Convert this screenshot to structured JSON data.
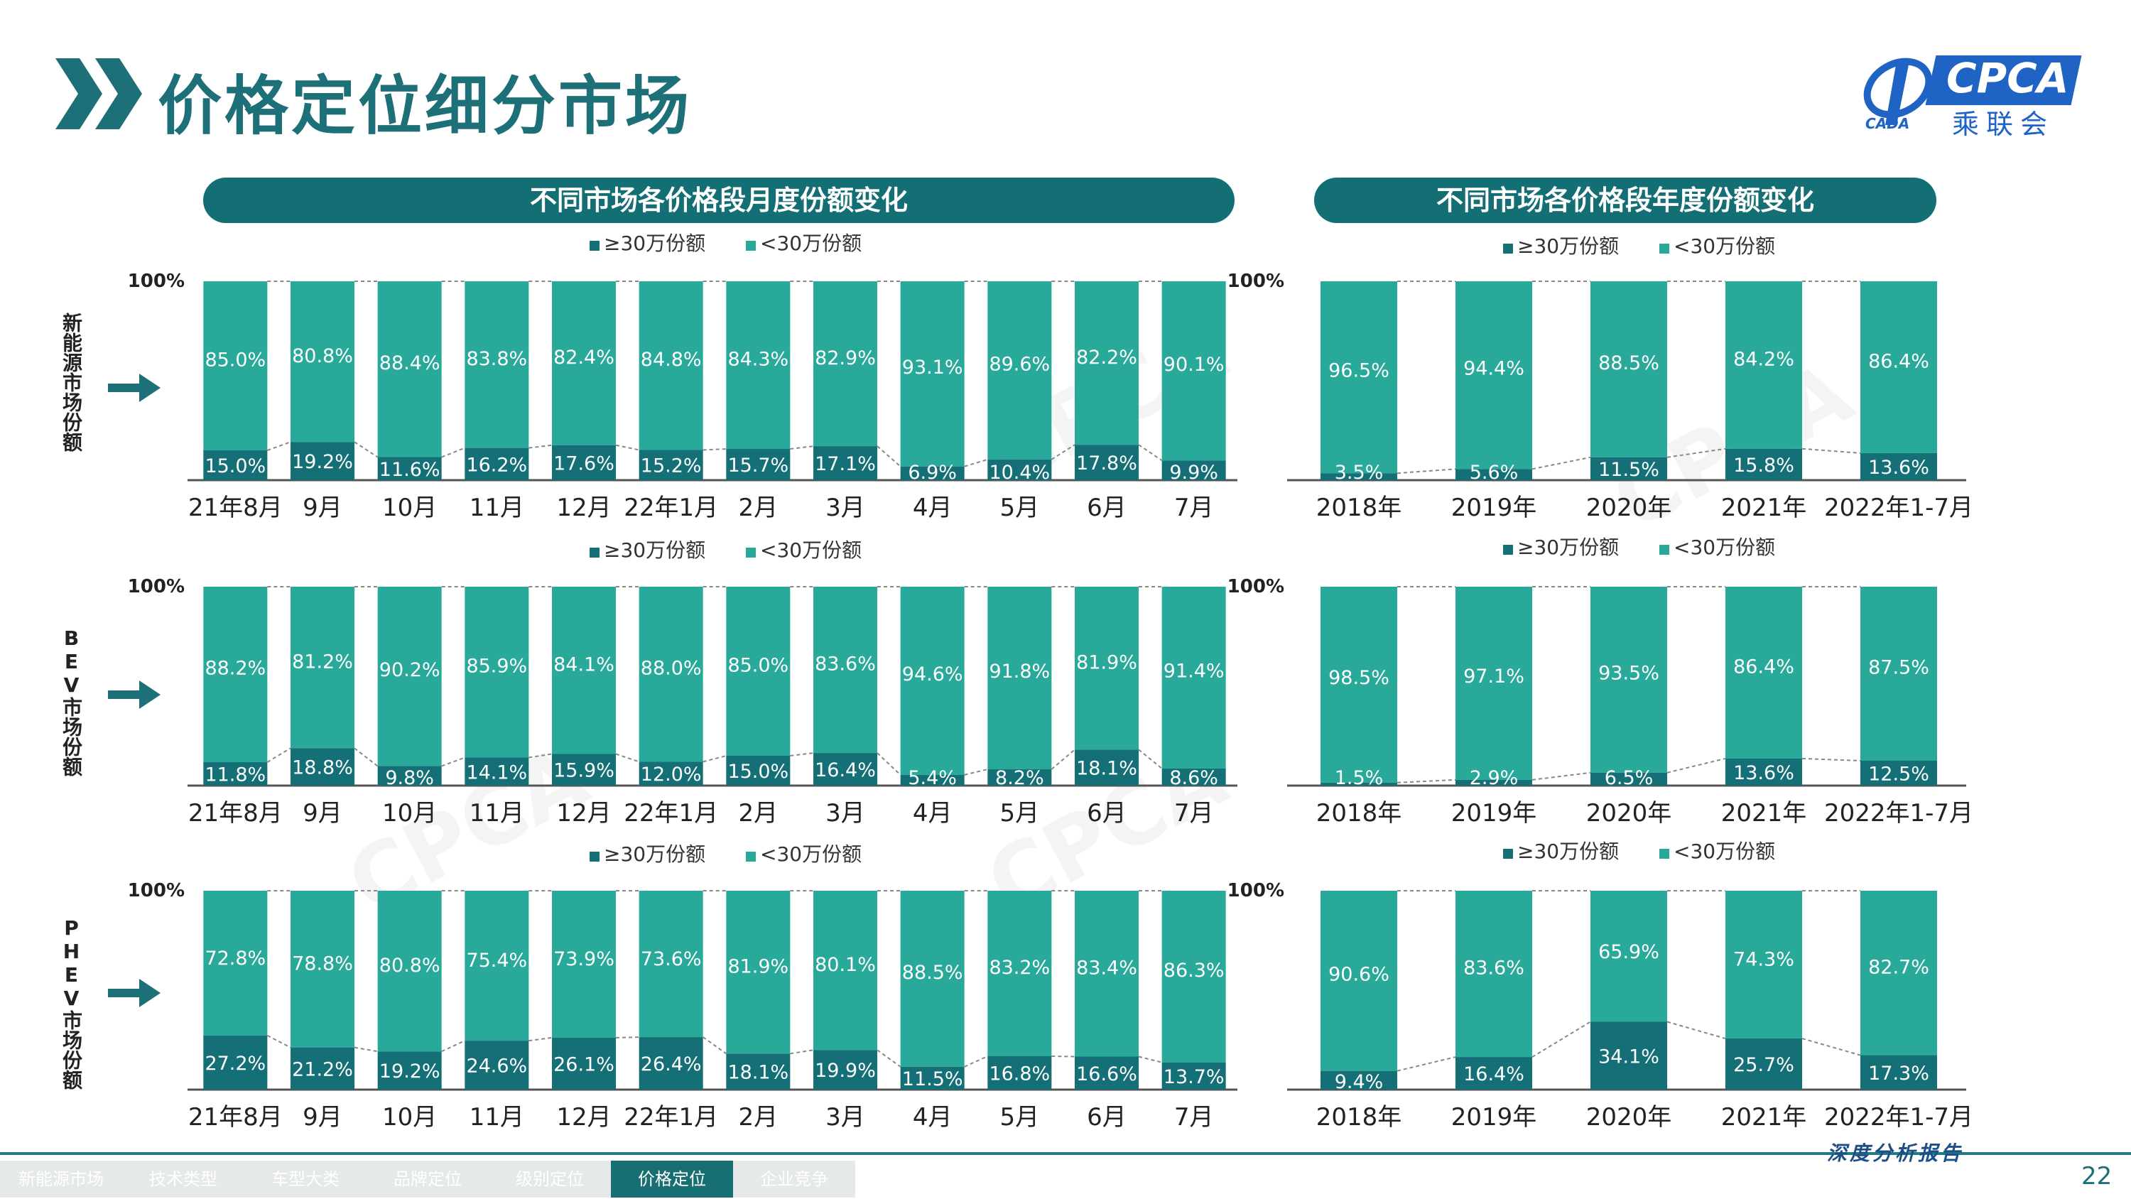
{
  "page": {
    "title": "价格定位细分市场",
    "page_number": "22",
    "report_label": "深度分析报告"
  },
  "logo": {
    "text": "CPCA",
    "sub": "乘联会",
    "small": "CADA"
  },
  "sections": {
    "monthly_header": "不同市场各价格段月度份额变化",
    "yearly_header": "不同市场各价格段年度份额变化"
  },
  "rows": [
    {
      "label": "新能源市场份额"
    },
    {
      "label": "BEV市场份额"
    },
    {
      "label": "PHEV市场份额"
    }
  ],
  "nav": [
    {
      "label": "新能源市场",
      "active": false
    },
    {
      "label": "技术类型",
      "active": false
    },
    {
      "label": "车型大类",
      "active": false
    },
    {
      "label": "品牌定位",
      "active": false
    },
    {
      "label": "级别定位",
      "active": false
    },
    {
      "label": "价格定位",
      "active": true
    },
    {
      "label": "企业竞争",
      "active": false
    }
  ],
  "colors": {
    "high": "#146f76",
    "low": "#28a99a",
    "header": "#136f74",
    "title": "#1d6f78"
  },
  "chart_data": [
    {
      "type": "bar",
      "stacked": true,
      "percent": true,
      "market": "新能源市场份额",
      "axis_top": "100%",
      "categories": [
        "21年8月",
        "9月",
        "10月",
        "11月",
        "12月",
        "22年1月",
        "2月",
        "3月",
        "4月",
        "5月",
        "6月",
        "7月"
      ],
      "series": [
        {
          "name": "≥30万份额",
          "values": [
            15.0,
            19.2,
            11.6,
            16.2,
            17.6,
            15.2,
            15.7,
            17.1,
            6.9,
            10.4,
            17.8,
            9.9
          ]
        },
        {
          "name": "<30万份额",
          "values": [
            85.0,
            80.8,
            88.4,
            83.8,
            82.4,
            84.8,
            84.3,
            82.9,
            93.1,
            89.6,
            82.2,
            90.1
          ]
        }
      ]
    },
    {
      "type": "bar",
      "stacked": true,
      "percent": true,
      "market": "新能源市场份额",
      "axis_top": "100%",
      "categories": [
        "2018年",
        "2019年",
        "2020年",
        "2021年",
        "2022年1-7月"
      ],
      "series": [
        {
          "name": "≥30万份额",
          "values": [
            3.5,
            5.6,
            11.5,
            15.8,
            13.6
          ]
        },
        {
          "name": "<30万份额",
          "values": [
            96.5,
            94.4,
            88.5,
            84.2,
            86.4
          ]
        }
      ]
    },
    {
      "type": "bar",
      "stacked": true,
      "percent": true,
      "market": "BEV市场份额",
      "axis_top": "100%",
      "categories": [
        "21年8月",
        "9月",
        "10月",
        "11月",
        "12月",
        "22年1月",
        "2月",
        "3月",
        "4月",
        "5月",
        "6月",
        "7月"
      ],
      "series": [
        {
          "name": "≥30万份额",
          "values": [
            11.8,
            18.8,
            9.8,
            14.1,
            15.9,
            12.0,
            15.0,
            16.4,
            5.4,
            8.2,
            18.1,
            8.6
          ]
        },
        {
          "name": "<30万份额",
          "values": [
            88.2,
            81.2,
            90.2,
            85.9,
            84.1,
            88.0,
            85.0,
            83.6,
            94.6,
            91.8,
            81.9,
            91.4
          ]
        }
      ]
    },
    {
      "type": "bar",
      "stacked": true,
      "percent": true,
      "market": "BEV市场份额",
      "axis_top": "100%",
      "categories": [
        "2018年",
        "2019年",
        "2020年",
        "2021年",
        "2022年1-7月"
      ],
      "series": [
        {
          "name": "≥30万份额",
          "values": [
            1.5,
            2.9,
            6.5,
            13.6,
            12.5
          ]
        },
        {
          "name": "<30万份额",
          "values": [
            98.5,
            97.1,
            93.5,
            86.4,
            87.5
          ]
        }
      ]
    },
    {
      "type": "bar",
      "stacked": true,
      "percent": true,
      "market": "PHEV市场份额",
      "axis_top": "100%",
      "categories": [
        "21年8月",
        "9月",
        "10月",
        "11月",
        "12月",
        "22年1月",
        "2月",
        "3月",
        "4月",
        "5月",
        "6月",
        "7月"
      ],
      "series": [
        {
          "name": "≥30万份额",
          "values": [
            27.2,
            21.2,
            19.2,
            24.6,
            26.1,
            26.4,
            18.1,
            19.9,
            11.5,
            16.8,
            16.6,
            13.7
          ]
        },
        {
          "name": "<30万份额",
          "values": [
            72.8,
            78.8,
            80.8,
            75.4,
            73.9,
            73.6,
            81.9,
            80.1,
            88.5,
            83.2,
            83.4,
            86.3
          ]
        }
      ]
    },
    {
      "type": "bar",
      "stacked": true,
      "percent": true,
      "market": "PHEV市场份额",
      "axis_top": "100%",
      "categories": [
        "2018年",
        "2019年",
        "2020年",
        "2021年",
        "2022年1-7月"
      ],
      "series": [
        {
          "name": "≥30万份额",
          "values": [
            9.4,
            16.4,
            34.1,
            25.7,
            17.3
          ]
        },
        {
          "name": "<30万份额",
          "values": [
            90.6,
            83.6,
            65.9,
            74.3,
            82.7
          ]
        }
      ]
    }
  ]
}
